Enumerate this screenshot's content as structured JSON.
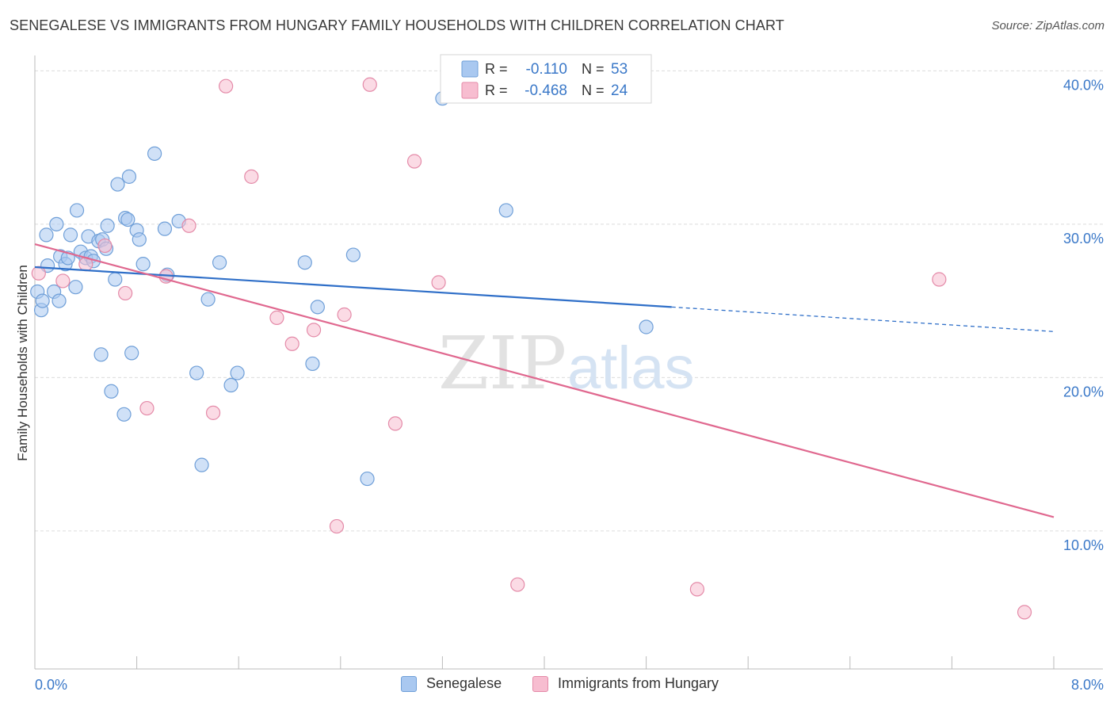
{
  "title": "SENEGALESE VS IMMIGRANTS FROM HUNGARY FAMILY HOUSEHOLDS WITH CHILDREN CORRELATION CHART",
  "source": "Source: ZipAtlas.com",
  "watermark": {
    "zip": "ZIP",
    "atlas": "atlas"
  },
  "colors": {
    "blue_fill": "#a9c8f0",
    "blue_stroke": "#6f9fd8",
    "blue_line": "#2f6fc8",
    "pink_fill": "#f7bdd0",
    "pink_stroke": "#e48aa8",
    "pink_line": "#e0688f",
    "tick_label": "#3a78c8",
    "grid": "#dcdcdc"
  },
  "legend_top": [
    {
      "r_label": "R =",
      "r_value": "-0.110",
      "n_label": "N =",
      "n_value": "53"
    },
    {
      "r_label": "R =",
      "r_value": "-0.468",
      "n_label": "N =",
      "n_value": "24"
    }
  ],
  "legend_bottom": [
    "Senegalese",
    "Immigrants from Hungary"
  ],
  "chart_data": {
    "type": "scatter",
    "title": "SENEGALESE VS IMMIGRANTS FROM HUNGARY FAMILY HOUSEHOLDS WITH CHILDREN CORRELATION CHART",
    "xlabel": "",
    "ylabel": "Family Households with Children",
    "xlim": [
      0,
      8
    ],
    "ylim": [
      1,
      41
    ],
    "x_tick_labels": [
      "0.0%",
      "8.0%"
    ],
    "y_ticks": [
      10,
      20,
      30,
      40
    ],
    "y_tick_labels": [
      "10.0%",
      "20.0%",
      "30.0%",
      "40.0%"
    ],
    "grid": true,
    "legend_placement": "top-center",
    "series": [
      {
        "name": "Senegalese",
        "points": [
          [
            0.02,
            25.6
          ],
          [
            0.05,
            24.4
          ],
          [
            0.06,
            25.0
          ],
          [
            0.09,
            29.3
          ],
          [
            0.1,
            27.3
          ],
          [
            0.15,
            25.6
          ],
          [
            0.17,
            30.0
          ],
          [
            0.19,
            25.0
          ],
          [
            0.2,
            27.9
          ],
          [
            0.24,
            27.4
          ],
          [
            0.26,
            27.8
          ],
          [
            0.28,
            29.3
          ],
          [
            0.32,
            25.9
          ],
          [
            0.33,
            30.9
          ],
          [
            0.36,
            28.2
          ],
          [
            0.4,
            27.8
          ],
          [
            0.42,
            29.2
          ],
          [
            0.44,
            27.9
          ],
          [
            0.46,
            27.6
          ],
          [
            0.5,
            28.9
          ],
          [
            0.53,
            29.0
          ],
          [
            0.56,
            28.4
          ],
          [
            0.57,
            29.9
          ],
          [
            0.6,
            19.1
          ],
          [
            0.63,
            26.4
          ],
          [
            0.65,
            32.6
          ],
          [
            0.7,
            17.6
          ],
          [
            0.71,
            30.4
          ],
          [
            0.73,
            30.3
          ],
          [
            0.74,
            33.1
          ],
          [
            0.76,
            21.6
          ],
          [
            0.8,
            29.6
          ],
          [
            0.82,
            29.0
          ],
          [
            0.85,
            27.4
          ],
          [
            0.94,
            34.6
          ],
          [
            1.02,
            29.7
          ],
          [
            1.04,
            26.7
          ],
          [
            1.13,
            30.2
          ],
          [
            1.27,
            20.3
          ],
          [
            1.31,
            14.3
          ],
          [
            1.36,
            25.1
          ],
          [
            1.45,
            27.5
          ],
          [
            1.54,
            19.5
          ],
          [
            1.59,
            20.3
          ],
          [
            2.12,
            27.5
          ],
          [
            2.18,
            20.9
          ],
          [
            2.22,
            24.6
          ],
          [
            2.5,
            28.0
          ],
          [
            2.61,
            13.4
          ],
          [
            3.2,
            38.2
          ],
          [
            3.7,
            30.9
          ],
          [
            4.8,
            23.3
          ],
          [
            0.52,
            21.5
          ]
        ],
        "trend": {
          "x": [
            0,
            5.0
          ],
          "y": [
            27.2,
            24.6
          ],
          "dashed_to": [
            8.0,
            23.0
          ]
        }
      },
      {
        "name": "Immigrants from Hungary",
        "points": [
          [
            0.03,
            26.8
          ],
          [
            0.22,
            26.3
          ],
          [
            0.4,
            27.4
          ],
          [
            0.55,
            28.6
          ],
          [
            0.71,
            25.5
          ],
          [
            0.88,
            18.0
          ],
          [
            1.03,
            26.6
          ],
          [
            1.21,
            29.9
          ],
          [
            1.4,
            17.7
          ],
          [
            1.5,
            39.0
          ],
          [
            1.7,
            33.1
          ],
          [
            1.9,
            23.9
          ],
          [
            2.02,
            22.2
          ],
          [
            2.19,
            23.1
          ],
          [
            2.37,
            10.3
          ],
          [
            2.43,
            24.1
          ],
          [
            2.63,
            39.1
          ],
          [
            2.83,
            17.0
          ],
          [
            2.98,
            34.1
          ],
          [
            3.17,
            26.2
          ],
          [
            3.79,
            6.5
          ],
          [
            5.2,
            6.2
          ],
          [
            7.1,
            26.4
          ],
          [
            7.77,
            4.7
          ]
        ],
        "trend": {
          "x": [
            0,
            8.0
          ],
          "y": [
            28.7,
            10.9
          ]
        }
      }
    ]
  }
}
